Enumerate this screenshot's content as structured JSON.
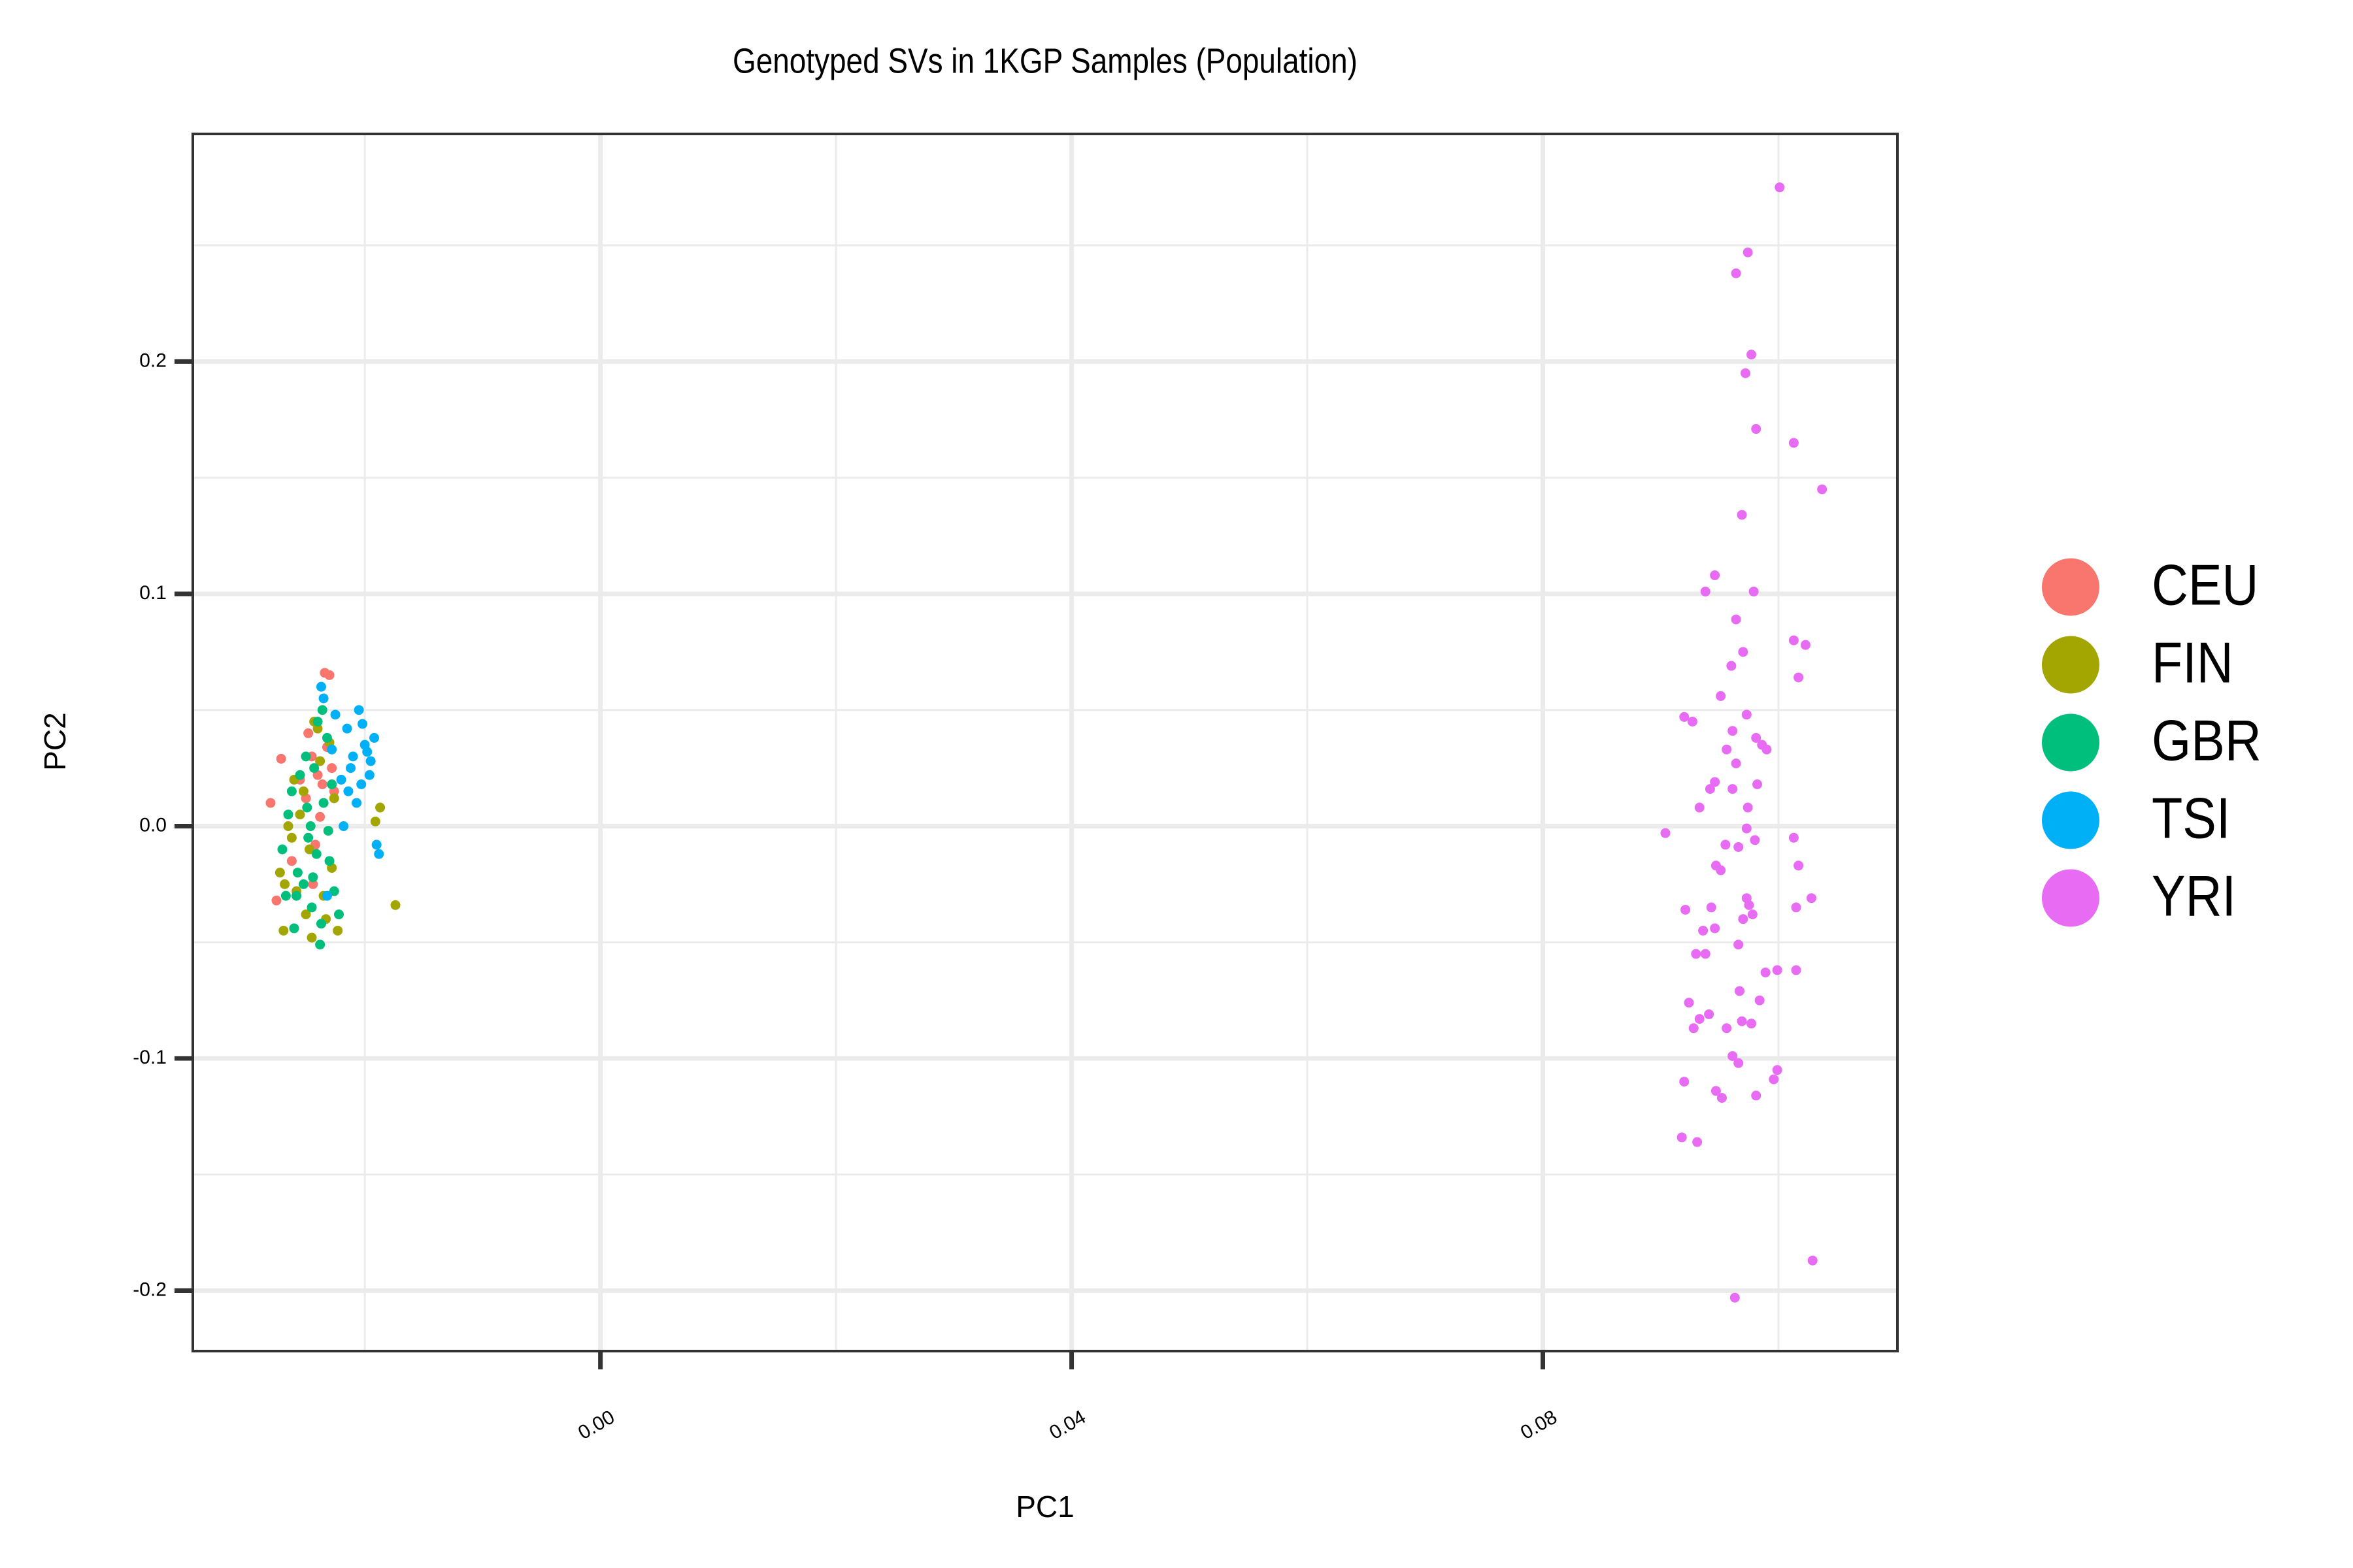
{
  "chart_data": {
    "type": "scatter",
    "title": "Genotyped SVs in 1KGP Samples (Population)",
    "xlabel": "PC1",
    "ylabel": "PC2",
    "xlim": [
      -0.0346,
      0.1101
    ],
    "ylim": [
      -0.226,
      0.298
    ],
    "xticks": [
      {
        "value": 0,
        "label": "0.00"
      },
      0.04,
      0.08
    ],
    "yticks": [
      {
        "value": -0.2,
        "label": "-0.2"
      },
      {
        "value": -0.1,
        "label": "-0.1"
      },
      {
        "value": 0,
        "label": "0.0"
      },
      0.1,
      0.2
    ],
    "grid": true,
    "legend_position": "right",
    "series": [
      {
        "name": "CEU",
        "color": "#F8766D",
        "x": [
          -0.028,
          -0.0271,
          -0.0234,
          -0.023,
          -0.0275,
          -0.024,
          -0.0236,
          -0.0245,
          -0.0228,
          -0.025,
          -0.0238,
          -0.0242,
          -0.0255,
          -0.0232,
          -0.0262,
          -0.0226,
          -0.0248,
          -0.0244
        ],
        "y": [
          0.01,
          0.029,
          0.066,
          0.065,
          -0.032,
          0.022,
          0.018,
          0.03,
          0.025,
          0.012,
          0.004,
          -0.008,
          0.02,
          0.034,
          -0.015,
          0.015,
          0.04,
          -0.025
        ]
      },
      {
        "name": "FIN",
        "color": "#A3A500",
        "x": [
          -0.0174,
          -0.0187,
          -0.0191,
          -0.0269,
          -0.0223,
          -0.0272,
          -0.0265,
          -0.0258,
          -0.025,
          -0.0243,
          -0.0238,
          -0.023,
          -0.0226,
          -0.026,
          -0.0247,
          -0.0235,
          -0.0255,
          -0.024,
          -0.0233,
          -0.0268,
          -0.0252,
          -0.0228,
          -0.0245,
          -0.0262
        ],
        "y": [
          -0.034,
          0.008,
          0.002,
          -0.045,
          -0.045,
          -0.02,
          0.0,
          -0.028,
          -0.038,
          0.045,
          0.028,
          0.036,
          0.012,
          0.02,
          -0.01,
          -0.03,
          0.005,
          0.042,
          -0.04,
          -0.025,
          0.015,
          -0.018,
          -0.048,
          -0.005
        ]
      },
      {
        "name": "GBR",
        "color": "#00BF7D",
        "x": [
          -0.0238,
          -0.026,
          -0.027,
          -0.0265,
          -0.0257,
          -0.025,
          -0.0245,
          -0.024,
          -0.0235,
          -0.023,
          -0.0226,
          -0.0222,
          -0.0262,
          -0.0255,
          -0.0248,
          -0.0243,
          -0.0237,
          -0.0232,
          -0.0252,
          -0.0258,
          -0.0246,
          -0.0241,
          -0.0228,
          -0.0267,
          -0.0236,
          -0.0249,
          -0.0244,
          -0.0231
        ],
        "y": [
          -0.051,
          -0.044,
          -0.01,
          0.005,
          -0.02,
          0.03,
          -0.035,
          0.045,
          0.01,
          -0.015,
          -0.028,
          -0.038,
          0.015,
          0.022,
          -0.005,
          0.025,
          -0.042,
          0.038,
          -0.025,
          -0.03,
          0.0,
          -0.012,
          0.018,
          -0.03,
          0.05,
          0.008,
          -0.022,
          -0.002
        ]
      },
      {
        "name": "TSI",
        "color": "#00B0F6",
        "x": [
          -0.0188,
          -0.0237,
          -0.0205,
          -0.021,
          -0.02,
          -0.0195,
          -0.0215,
          -0.022,
          -0.0192,
          -0.0203,
          -0.0198,
          -0.0212,
          -0.0225,
          -0.0207,
          -0.019,
          -0.0218,
          -0.0228,
          -0.0235,
          -0.0202,
          -0.0196,
          -0.0232,
          -0.0214
        ],
        "y": [
          -0.012,
          0.06,
          0.05,
          0.03,
          0.035,
          0.028,
          0.042,
          0.02,
          0.038,
          0.018,
          0.032,
          0.025,
          0.048,
          0.01,
          -0.008,
          0.0,
          0.033,
          0.055,
          0.044,
          0.022,
          -0.03,
          0.015
        ]
      },
      {
        "name": "YRI",
        "color": "#E76BF3",
        "x": [
          0.1001,
          0.0974,
          0.0964,
          0.0977,
          0.0972,
          0.0981,
          0.1013,
          0.1037,
          0.0969,
          0.0946,
          0.0938,
          0.0979,
          0.0964,
          0.1013,
          0.1023,
          0.097,
          0.096,
          0.1017,
          0.0951,
          0.0973,
          0.092,
          0.0927,
          0.0961,
          0.0981,
          0.0986,
          0.099,
          0.0956,
          0.0964,
          0.0946,
          0.0942,
          0.0961,
          0.0982,
          0.0974,
          0.0933,
          0.0904,
          0.0973,
          0.1013,
          0.0955,
          0.0966,
          0.098,
          0.0947,
          0.0951,
          0.1017,
          0.0973,
          0.0975,
          0.1028,
          0.1015,
          0.0943,
          0.0921,
          0.0978,
          0.097,
          0.0936,
          0.0946,
          0.0966,
          0.093,
          0.0938,
          0.0999,
          0.1015,
          0.0989,
          0.0967,
          0.0924,
          0.0984,
          0.0941,
          0.0933,
          0.0969,
          0.0977,
          0.0928,
          0.0956,
          0.0961,
          0.0966,
          0.0999,
          0.0996,
          0.092,
          0.0947,
          0.0952,
          0.0981,
          0.0918,
          0.0931,
          0.1029,
          0.0963
        ],
        "y": [
          0.275,
          0.247,
          0.238,
          0.203,
          0.195,
          0.171,
          0.165,
          0.145,
          0.134,
          0.108,
          0.101,
          0.101,
          0.089,
          0.08,
          0.078,
          0.075,
          0.069,
          0.064,
          0.056,
          0.048,
          0.047,
          0.045,
          0.041,
          0.038,
          0.035,
          0.033,
          0.033,
          0.027,
          0.019,
          0.016,
          0.016,
          0.018,
          0.008,
          0.008,
          -0.003,
          -0.001,
          -0.005,
          -0.008,
          -0.009,
          -0.006,
          -0.017,
          -0.019,
          -0.017,
          -0.031,
          -0.034,
          -0.031,
          -0.035,
          -0.035,
          -0.036,
          -0.038,
          -0.04,
          -0.045,
          -0.044,
          -0.051,
          -0.055,
          -0.055,
          -0.062,
          -0.062,
          -0.063,
          -0.071,
          -0.076,
          -0.075,
          -0.081,
          -0.083,
          -0.084,
          -0.085,
          -0.087,
          -0.087,
          -0.099,
          -0.102,
          -0.105,
          -0.109,
          -0.11,
          -0.114,
          -0.117,
          -0.116,
          -0.134,
          -0.136,
          -0.187,
          -0.203
        ]
      }
    ]
  }
}
